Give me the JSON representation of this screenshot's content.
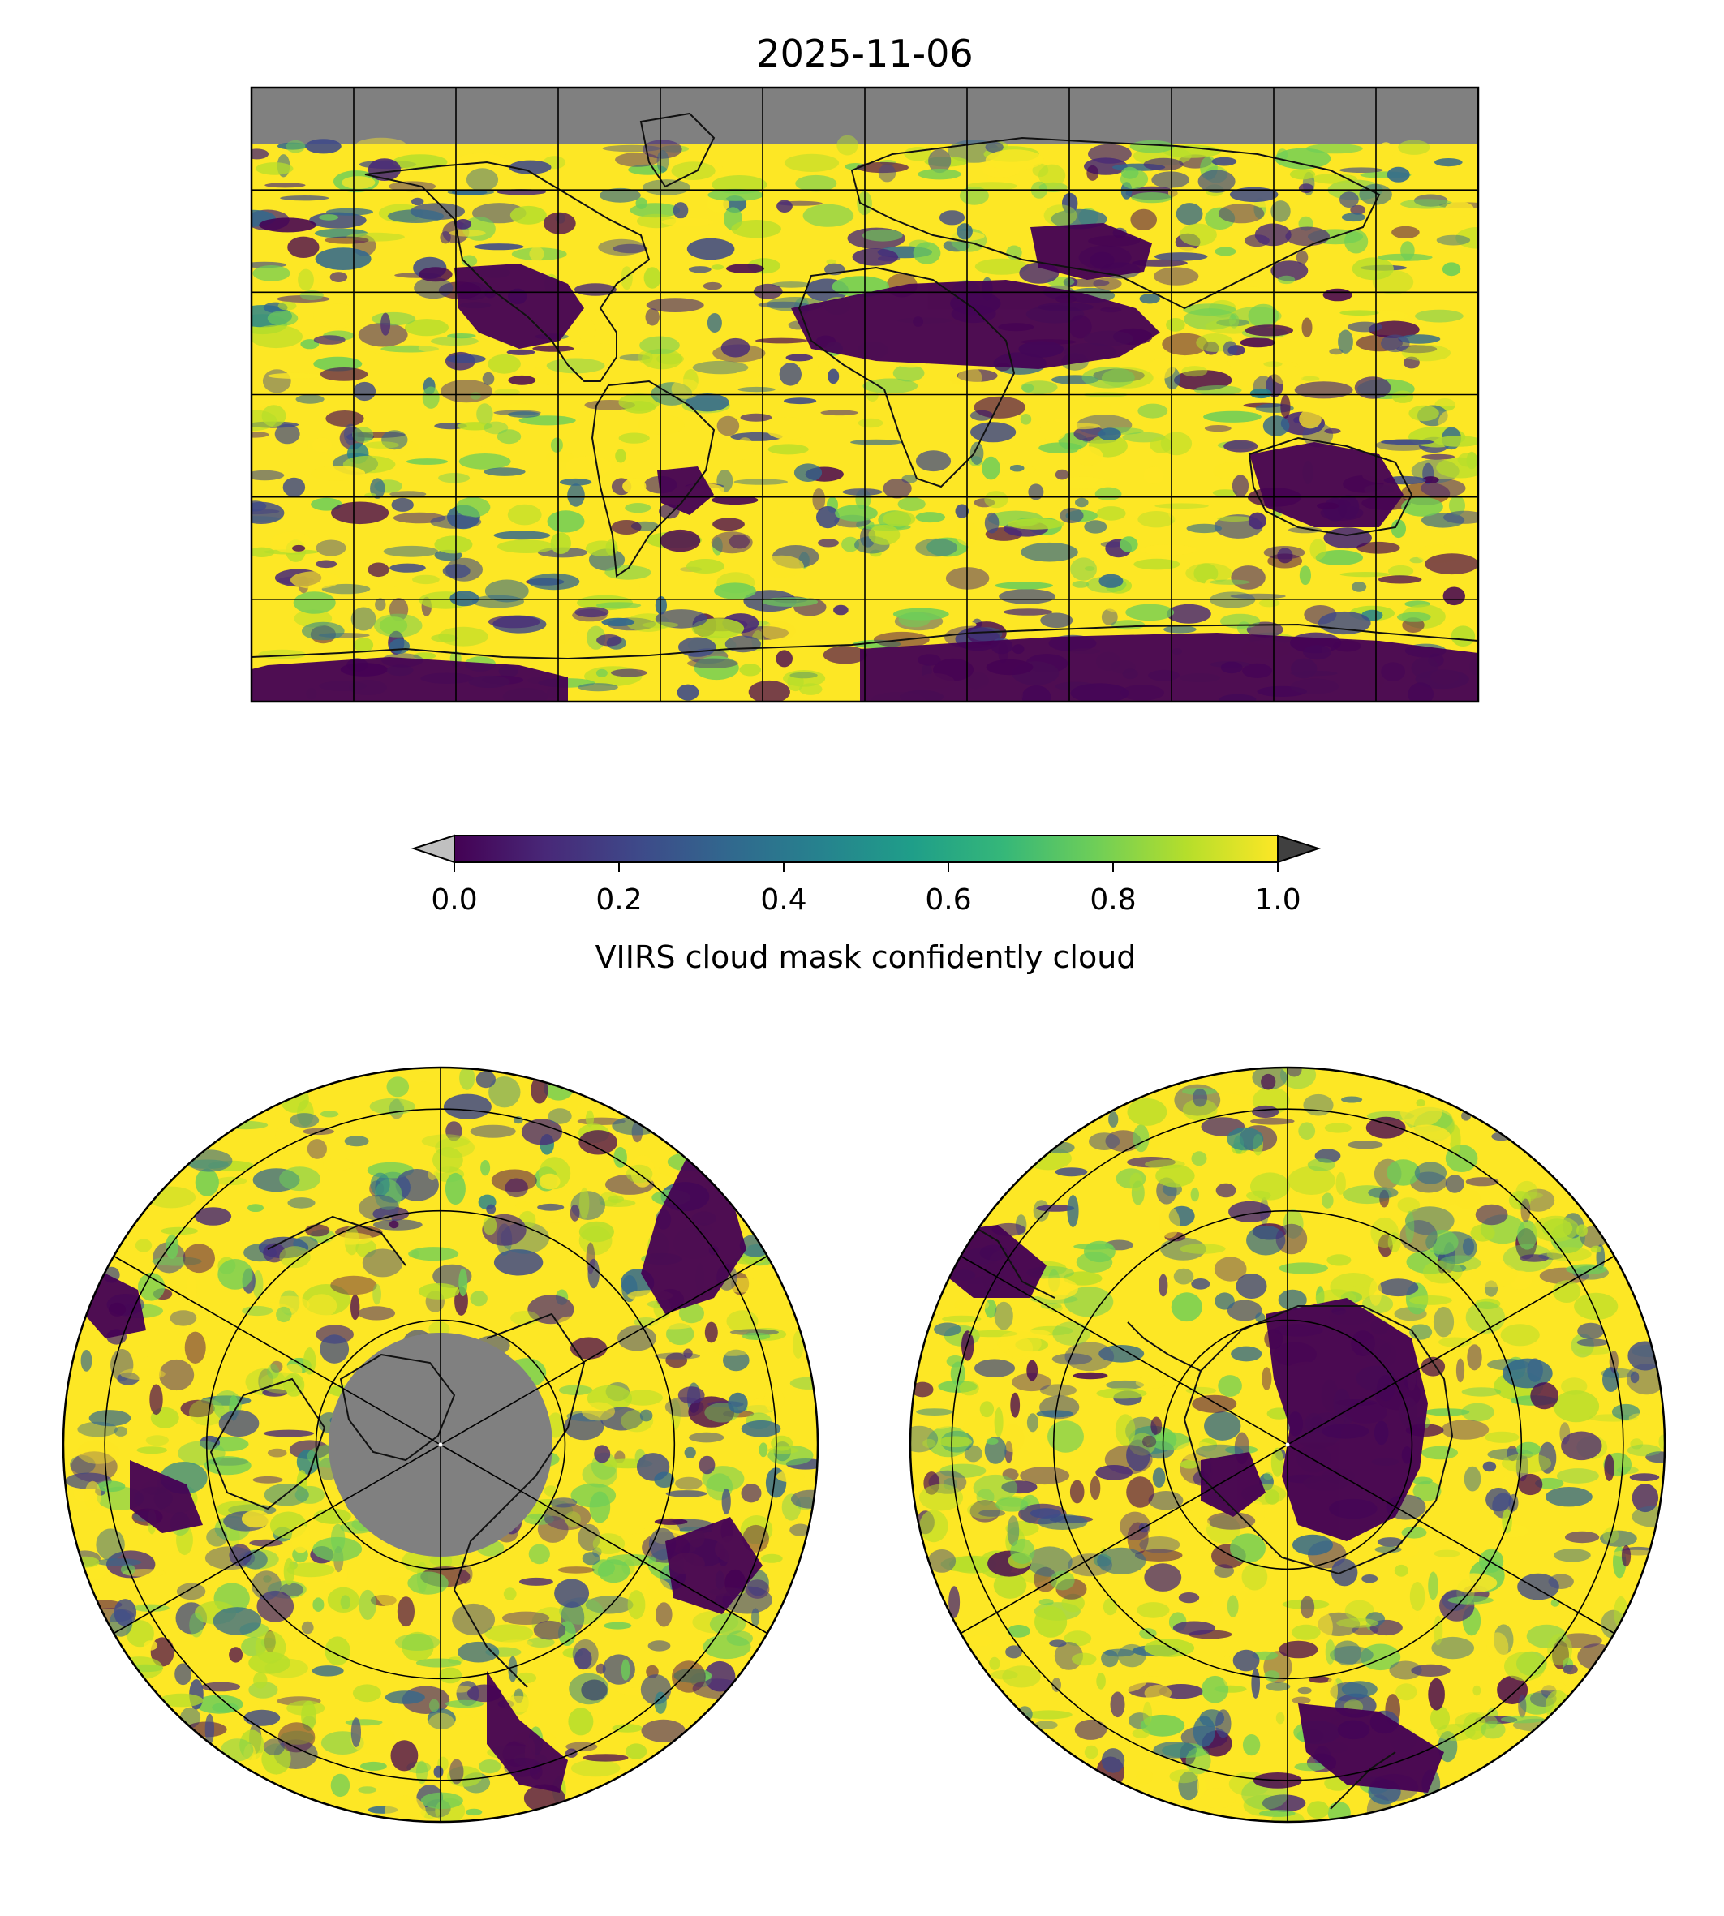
{
  "title": "2025-11-06",
  "colorbar": {
    "label": "VIIRS cloud mask confidently cloud",
    "colormap": "viridis",
    "range": [
      0.0,
      1.0
    ],
    "ticks": [
      "0.0",
      "0.2",
      "0.4",
      "0.6",
      "0.8",
      "1.0"
    ],
    "extend": "both",
    "under_color": "#c0c0c0",
    "over_color": "#404040",
    "stops": [
      "#440154",
      "#482878",
      "#3e4989",
      "#31688e",
      "#26828e",
      "#1f9e89",
      "#35b779",
      "#6ece58",
      "#b5de2b",
      "#fde725"
    ]
  },
  "maps": {
    "global": {
      "projection": "Plate Carree",
      "lon_range": [
        -180,
        180
      ],
      "lat_range": [
        -90,
        90
      ],
      "gridline_lons": [
        -150,
        -120,
        -90,
        -60,
        -30,
        0,
        30,
        60,
        90,
        120,
        150
      ],
      "gridline_lats": [
        -60,
        -30,
        0,
        30,
        60
      ],
      "no_data_color": "#808080",
      "no_data_region": "north of ~73N (polar night)"
    },
    "north_polar": {
      "projection": "North Polar Stereographic",
      "no_data_region": "central Arctic (polar night)"
    },
    "south_polar": {
      "projection": "South Polar Stereographic"
    }
  }
}
